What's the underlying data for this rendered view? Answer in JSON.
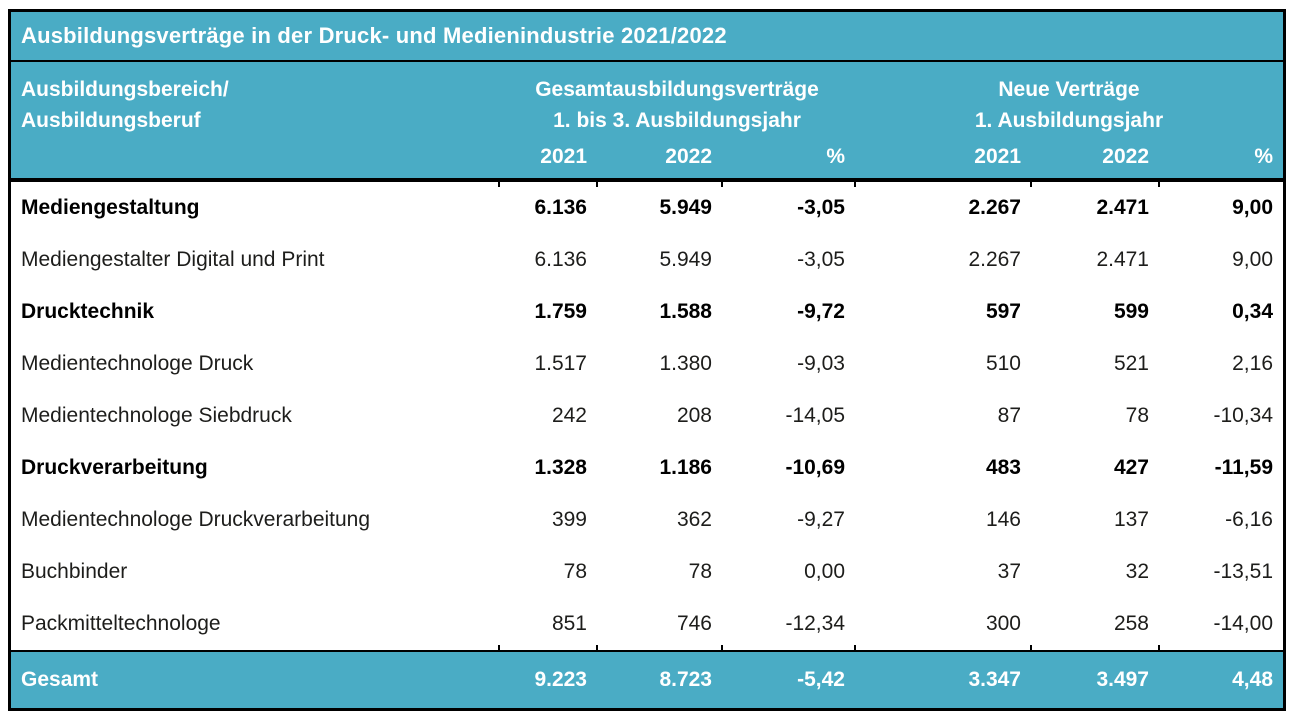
{
  "colors": {
    "accent_teal": "#4aacc5",
    "grid_black": "#000000",
    "body_text": "#1d1d1b",
    "header_text": "#ffffff"
  },
  "table": {
    "title": "Ausbildungsverträge in der Druck- und Medienindustrie 2021/2022",
    "row_header": {
      "line1": "Ausbildungsbereich/",
      "line2": "Ausbildungsberuf"
    },
    "groups": [
      {
        "line1": "Gesamtausbildungsverträge",
        "line2": "1. bis 3. Ausbildungsjahr"
      },
      {
        "line1": "Neue Verträge",
        "line2": "1. Ausbildungsjahr"
      }
    ],
    "year_headers": [
      "2021",
      "2022",
      "%",
      "2021",
      "2022",
      "%"
    ],
    "rows": [
      {
        "label": "Mediengestaltung",
        "bold": true,
        "values": [
          "6.136",
          "5.949",
          "-3,05",
          "2.267",
          "2.471",
          "9,00"
        ]
      },
      {
        "label": "Mediengestalter Digital und Print",
        "bold": false,
        "values": [
          "6.136",
          "5.949",
          "-3,05",
          "2.267",
          "2.471",
          "9,00"
        ]
      },
      {
        "label": "Drucktechnik",
        "bold": true,
        "values": [
          "1.759",
          "1.588",
          "-9,72",
          "597",
          "599",
          "0,34"
        ]
      },
      {
        "label": "Medientechnologe Druck",
        "bold": false,
        "values": [
          "1.517",
          "1.380",
          "-9,03",
          "510",
          "521",
          "2,16"
        ]
      },
      {
        "label": "Medientechnologe Siebdruck",
        "bold": false,
        "values": [
          "242",
          "208",
          "-14,05",
          "87",
          "78",
          "-10,34"
        ]
      },
      {
        "label": "Druckverarbeitung",
        "bold": true,
        "values": [
          "1.328",
          "1.186",
          "-10,69",
          "483",
          "427",
          "-11,59"
        ]
      },
      {
        "label": "Medientechnologe Druckverarbeitung",
        "bold": false,
        "values": [
          "399",
          "362",
          "-9,27",
          "146",
          "137",
          "-6,16"
        ]
      },
      {
        "label": "Buchbinder",
        "bold": false,
        "values": [
          "78",
          "78",
          "0,00",
          "37",
          "32",
          "-13,51"
        ]
      },
      {
        "label": "Packmitteltechnologe",
        "bold": false,
        "values": [
          "851",
          "746",
          "-12,34",
          "300",
          "258",
          "-14,00"
        ]
      }
    ],
    "footer": {
      "label": "Gesamt",
      "values": [
        "9.223",
        "8.723",
        "-5,42",
        "3.347",
        "3.497",
        "4,48"
      ]
    }
  }
}
